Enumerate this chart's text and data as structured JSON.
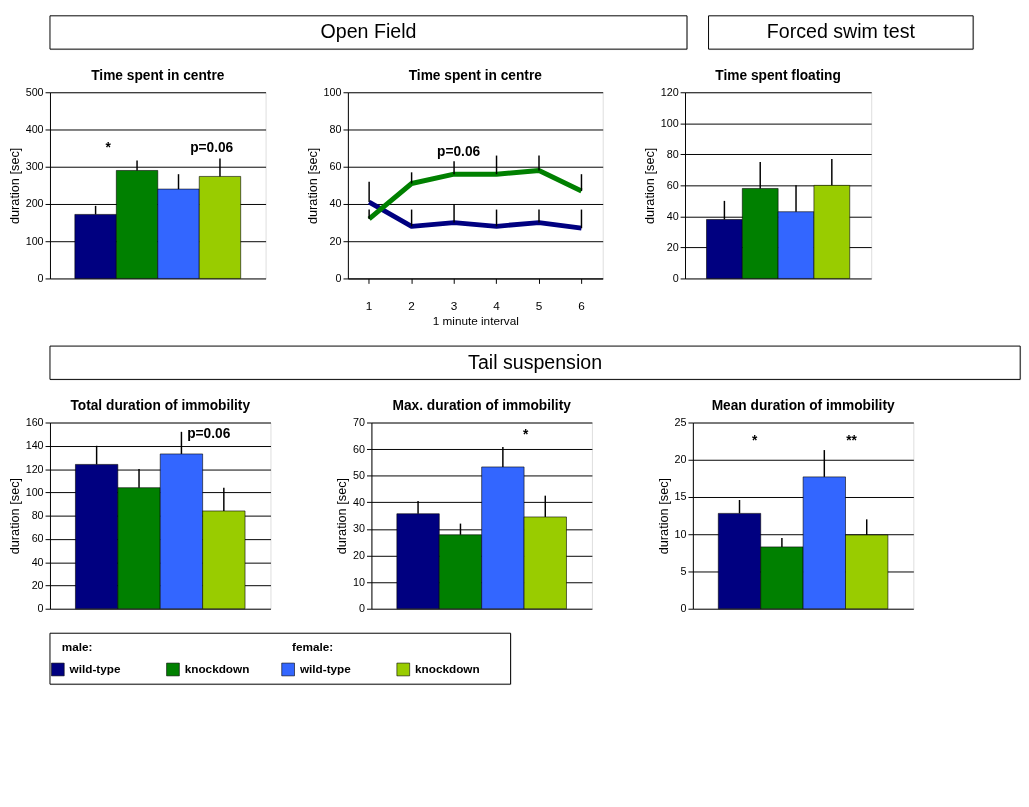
{
  "chart_data": [
    {
      "type": "other",
      "title": "Open Field"
    },
    {
      "type": "other",
      "title": "Forced swim test"
    },
    {
      "type": "bar",
      "title": "Time spent in centre",
      "ylabel": "duration [sec]",
      "categories": [
        null,
        null,
        null,
        null
      ],
      "values": [
        172,
        290,
        240,
        274
      ],
      "colors": [
        "#000080",
        "#008000",
        "#3366ff",
        "#99cc00"
      ],
      "errors": [
        [
          172,
          195
        ],
        [
          290,
          317
        ],
        [
          240,
          280
        ],
        [
          274,
          322
        ]
      ],
      "ylim": [
        0,
        500
      ],
      "yticks": [
        0,
        100,
        200,
        300,
        400,
        500
      ],
      "grid": "y",
      "annotations": [
        "*",
        "p=0.06"
      ]
    },
    {
      "type": "line",
      "title": "Time spent in centre",
      "ylabel": "duration [sec]",
      "xlabel": "1 minute interval",
      "categories": [
        "1",
        "2",
        "3",
        "4",
        "5",
        "6"
      ],
      "series": [
        {
          "color": "#000080",
          "values": [
            41,
            28,
            30,
            28,
            30,
            27
          ],
          "errors": [
            [
              41,
              52
            ],
            [
              28,
              37
            ],
            [
              30,
              40
            ],
            [
              28,
              37
            ],
            [
              30,
              37
            ],
            [
              27,
              37
            ]
          ]
        },
        {
          "color": "#008000",
          "values": [
            32,
            51,
            56,
            56,
            58,
            47
          ],
          "errors": [
            [
              32,
              37
            ],
            [
              51,
              57
            ],
            [
              56,
              63
            ],
            [
              56,
              66
            ],
            [
              58,
              66
            ],
            [
              47,
              56
            ]
          ]
        }
      ],
      "ylim": [
        0,
        100
      ],
      "yticks": [
        0,
        20,
        40,
        60,
        80,
        100
      ],
      "grid": "y",
      "line_style": "solid",
      "marker": "none",
      "annotations": [
        "p=0.06"
      ]
    },
    {
      "type": "bar",
      "title": "Time spent floating",
      "ylabel": "duration [sec]",
      "categories": [
        null,
        null,
        null,
        null
      ],
      "values": [
        38,
        58,
        43,
        60
      ],
      "colors": [
        "#000080",
        "#008000",
        "#3366ff",
        "#99cc00"
      ],
      "errors": [
        [
          38,
          50
        ],
        [
          58,
          75
        ],
        [
          43,
          60
        ],
        [
          60,
          77
        ]
      ],
      "ylim": [
        0,
        120
      ],
      "yticks": [
        0,
        20,
        40,
        60,
        80,
        100,
        120
      ],
      "grid": "y"
    },
    {
      "type": "other",
      "title": "Tail suspension"
    },
    {
      "type": "bar",
      "title": "Total duration of immobility",
      "ylabel": "duration [sec]",
      "categories": [
        null,
        null,
        null,
        null
      ],
      "values": [
        124,
        104,
        133,
        84
      ],
      "colors": [
        "#000080",
        "#008000",
        "#3366ff",
        "#99cc00"
      ],
      "errors": [
        [
          124,
          140
        ],
        [
          104,
          120
        ],
        [
          133,
          152
        ],
        [
          84,
          104
        ]
      ],
      "ylim": [
        0,
        160
      ],
      "yticks": [
        0,
        20,
        40,
        60,
        80,
        100,
        120,
        140,
        160
      ],
      "grid": "y",
      "annotations": [
        "p=0.06"
      ]
    },
    {
      "type": "bar",
      "title": "Max. duration of immobility",
      "ylabel": "duration [sec]",
      "categories": [
        null,
        null,
        null,
        null
      ],
      "values": [
        35.7,
        27.8,
        53.3,
        34.5
      ],
      "colors": [
        "#000080",
        "#008000",
        "#3366ff",
        "#99cc00"
      ],
      "errors": [
        [
          35.7,
          40.5
        ],
        [
          27.8,
          32
        ],
        [
          53.3,
          60.8
        ],
        [
          34.5,
          42.5
        ]
      ],
      "ylim": [
        0,
        70
      ],
      "yticks": [
        0,
        10,
        20,
        30,
        40,
        50,
        60,
        70
      ],
      "grid": "y",
      "annotations": [
        "*"
      ]
    },
    {
      "type": "bar",
      "title": "Mean duration of immobility",
      "ylabel": "duration [sec]",
      "categories": [
        null,
        null,
        null,
        null
      ],
      "values": [
        12.8,
        8.3,
        17.7,
        9.9
      ],
      "colors": [
        "#000080",
        "#008000",
        "#3366ff",
        "#99cc00"
      ],
      "errors": [
        [
          12.8,
          14.6
        ],
        [
          8.3,
          9.5
        ],
        [
          17.7,
          21.3
        ],
        [
          9.9,
          12
        ]
      ],
      "ylim": [
        0,
        25
      ],
      "yticks": [
        0,
        5,
        10,
        15,
        20,
        25
      ],
      "grid": "y",
      "annotations": [
        "*",
        "**"
      ]
    },
    {
      "type": "other",
      "categories": [
        "wild-type",
        "knockdown",
        "wild-type",
        "knockdown"
      ],
      "colors": [
        "#000080",
        "#008000",
        "#3366ff",
        "#99cc00"
      ],
      "annotations": [
        "male:",
        "female:"
      ]
    }
  ]
}
